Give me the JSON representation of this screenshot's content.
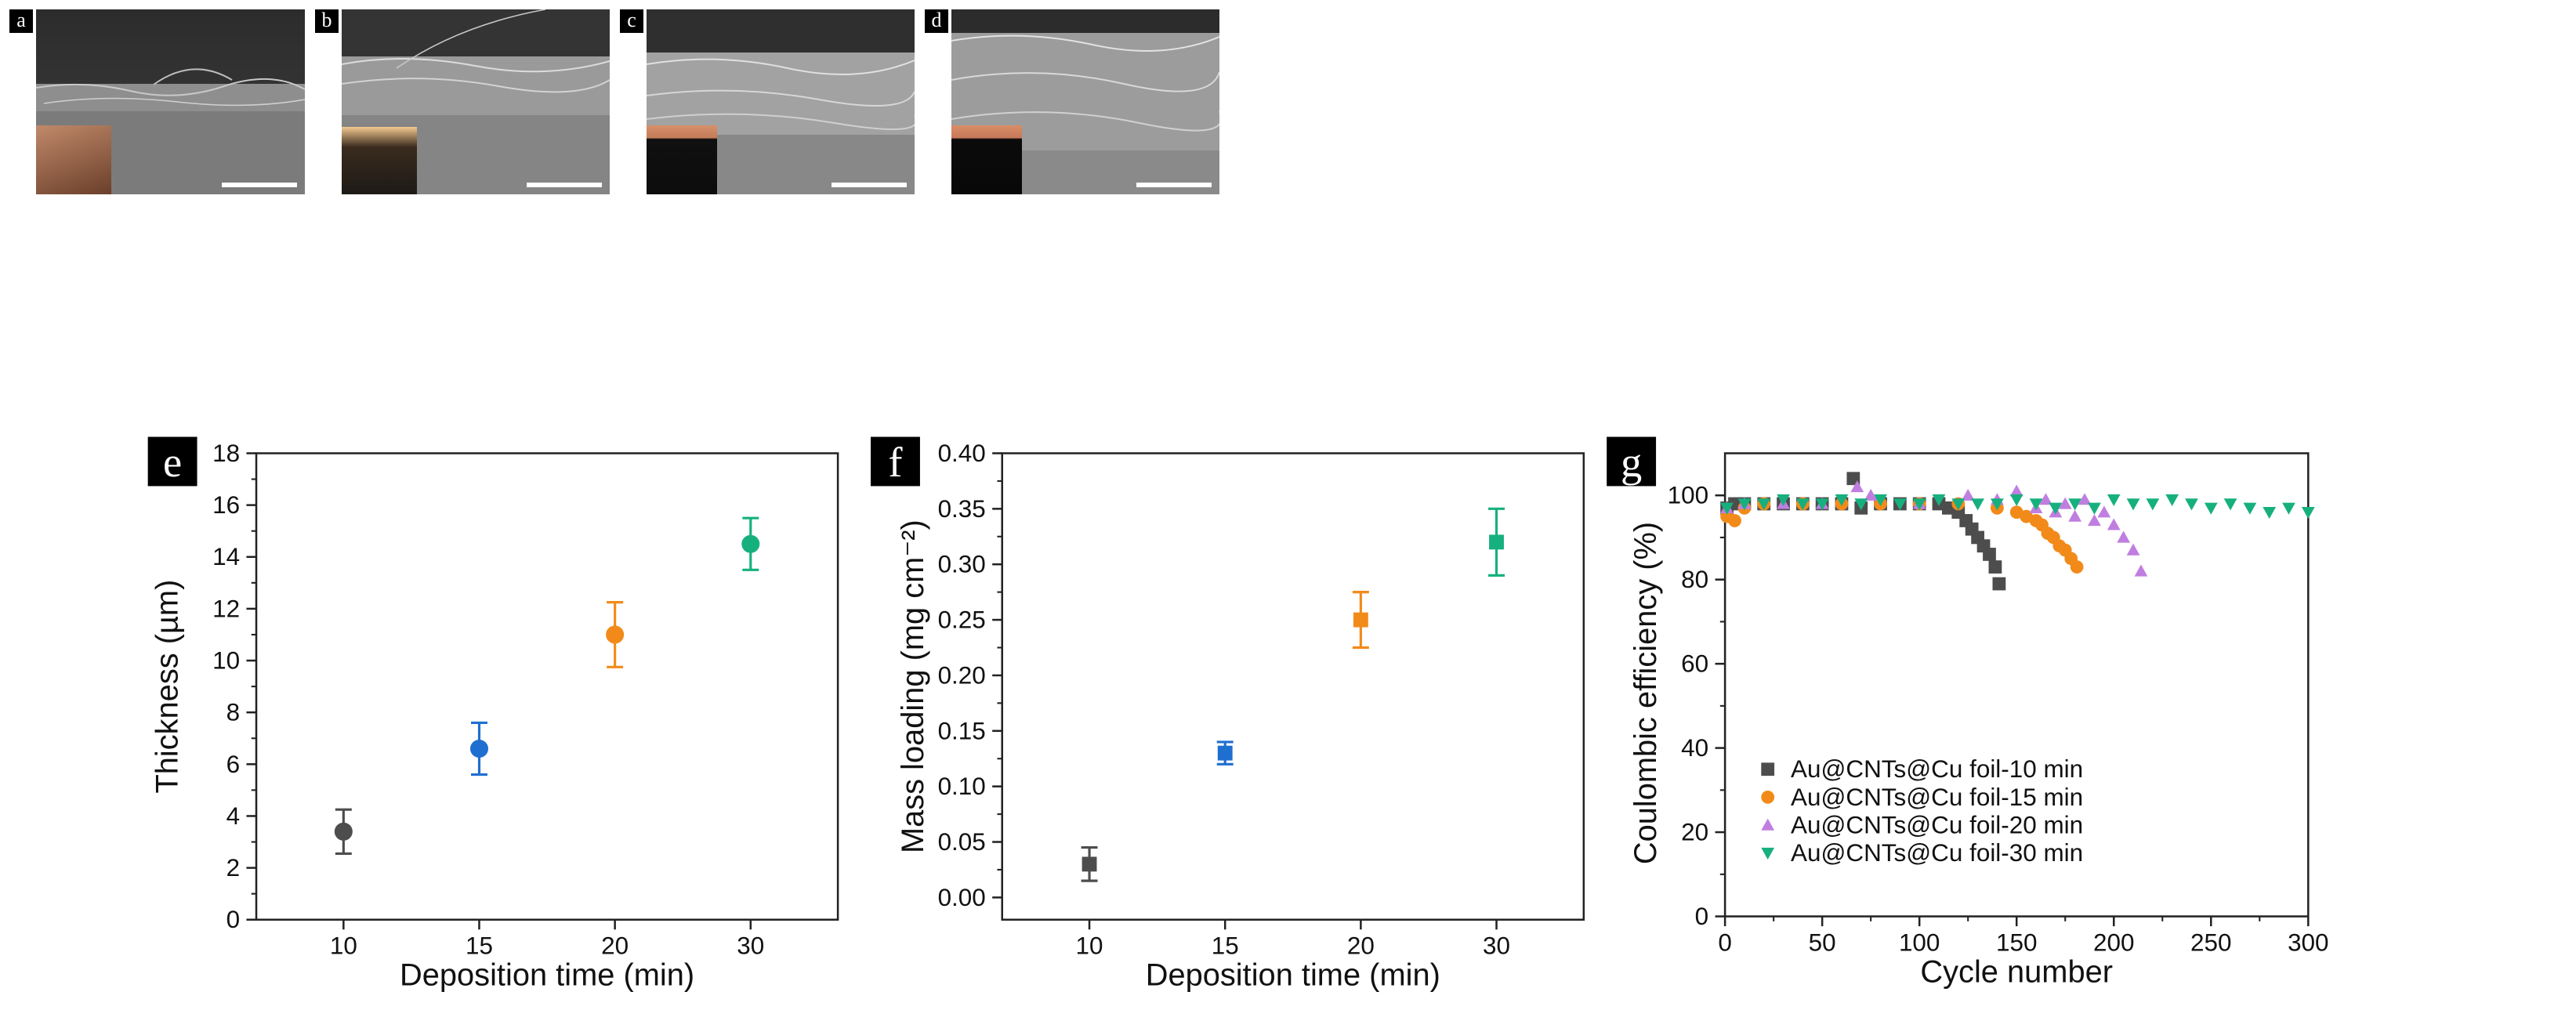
{
  "panel_labels": [
    "a",
    "b",
    "c",
    "d",
    "e",
    "f",
    "g"
  ],
  "colors": {
    "gray": "#4d4d4d",
    "blue": "#1f6fd0",
    "orange": "#f28a1a",
    "green": "#16b07e",
    "purple": "#c07ee0"
  },
  "chart_data": [
    {
      "panel": "e",
      "type": "scatter",
      "title": "",
      "xlabel": "Deposition time (min)",
      "ylabel": "Thickness (µm)",
      "categories": [
        "10",
        "15",
        "20",
        "30"
      ],
      "values": [
        3.4,
        6.6,
        11.0,
        14.5
      ],
      "errors": [
        0.85,
        1.0,
        1.25,
        1.0
      ],
      "marker": "circle",
      "point_colors": [
        "gray",
        "blue",
        "orange",
        "green"
      ],
      "ylim": [
        0,
        18
      ],
      "yticks": [
        "0",
        "2",
        "4",
        "6",
        "8",
        "10",
        "12",
        "14",
        "16",
        "18"
      ]
    },
    {
      "panel": "f",
      "type": "scatter",
      "title": "",
      "xlabel": "Deposition time (min)",
      "ylabel": "Mass loading (mg cm⁻²)",
      "categories": [
        "10",
        "15",
        "20",
        "30"
      ],
      "values": [
        0.03,
        0.13,
        0.25,
        0.32
      ],
      "errors": [
        0.015,
        0.01,
        0.025,
        0.03
      ],
      "marker": "square",
      "point_colors": [
        "gray",
        "blue",
        "orange",
        "green"
      ],
      "ylim": [
        -0.02,
        0.4
      ],
      "yticks": [
        "0.00",
        "0.05",
        "0.10",
        "0.15",
        "0.20",
        "0.25",
        "0.30",
        "0.35",
        "0.40"
      ]
    },
    {
      "panel": "g",
      "type": "scatter",
      "title": "",
      "xlabel": "Cycle number",
      "ylabel": "Coulombic efficiency (%)",
      "xlim": [
        0,
        300
      ],
      "ylim": [
        0,
        110
      ],
      "xticks": [
        "0",
        "50",
        "100",
        "150",
        "200",
        "250",
        "300"
      ],
      "yticks": [
        "0",
        "20",
        "40",
        "60",
        "80",
        "100"
      ],
      "legend_position": "bottom-left",
      "series": [
        {
          "name": "Au@CNTs@Cu foil-10 min",
          "color": "gray",
          "marker": "square",
          "x": [
            1,
            5,
            10,
            20,
            30,
            40,
            50,
            60,
            66,
            70,
            80,
            90,
            100,
            110,
            115,
            120,
            124,
            127,
            130,
            133,
            136,
            139,
            141
          ],
          "y": [
            97,
            98,
            98,
            98,
            98,
            98,
            98,
            98,
            104,
            97,
            98,
            98,
            98,
            98,
            97,
            96,
            94,
            92,
            90,
            88,
            86,
            83,
            79
          ]
        },
        {
          "name": "Au@CNTs@Cu foil-15 min",
          "color": "orange",
          "marker": "circle",
          "x": [
            1,
            5,
            10,
            20,
            40,
            60,
            80,
            100,
            120,
            140,
            150,
            155,
            160,
            163,
            166,
            169,
            172,
            175,
            178,
            181
          ],
          "y": [
            95,
            94,
            97,
            98,
            98,
            98,
            98,
            98,
            98,
            97,
            96,
            95,
            94,
            93,
            91,
            90,
            88,
            87,
            85,
            83
          ]
        },
        {
          "name": "Au@CNTs@Cu foil-20 min",
          "color": "purple",
          "marker": "triangle-up",
          "x": [
            1,
            10,
            30,
            50,
            68,
            75,
            100,
            125,
            140,
            150,
            160,
            165,
            170,
            175,
            180,
            185,
            190,
            195,
            200,
            205,
            210,
            214
          ],
          "y": [
            97,
            98,
            98,
            98,
            102,
            100,
            98,
            100,
            99,
            101,
            97,
            99,
            96,
            98,
            95,
            99,
            94,
            96,
            93,
            90,
            87,
            82
          ]
        },
        {
          "name": "Au@CNTs@Cu foil-30 min",
          "color": "green",
          "marker": "triangle-down",
          "x": [
            1,
            10,
            20,
            30,
            40,
            50,
            60,
            70,
            80,
            90,
            100,
            110,
            120,
            130,
            140,
            150,
            160,
            170,
            180,
            190,
            200,
            210,
            220,
            230,
            240,
            250,
            260,
            270,
            280,
            290,
            300
          ],
          "y": [
            97,
            98,
            98,
            99,
            98,
            98,
            99,
            98,
            99,
            98,
            98,
            99,
            98,
            98,
            98,
            99,
            98,
            97,
            98,
            97,
            99,
            98,
            98,
            99,
            98,
            97,
            98,
            97,
            96,
            97,
            96
          ]
        }
      ]
    }
  ]
}
